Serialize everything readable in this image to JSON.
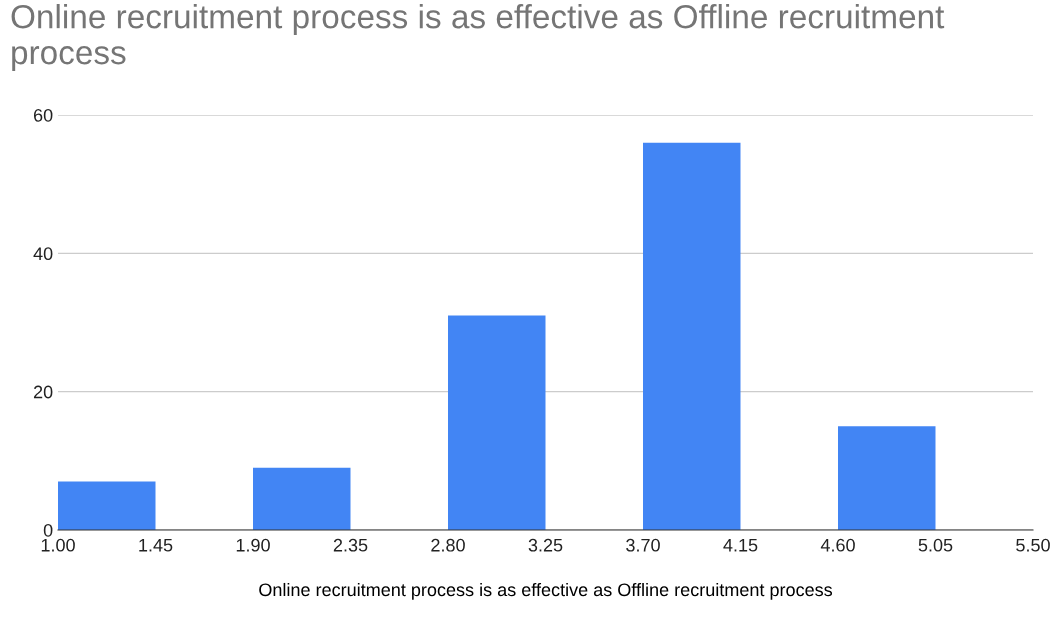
{
  "chart_data": {
    "type": "histogram",
    "title": "Online recruitment process is as effective as Offline recruitment process",
    "xlabel": "Online recruitment process is as effective as Offline recruitment process",
    "bins": [
      1.0,
      1.45,
      1.9,
      2.35,
      2.8,
      3.25,
      3.7,
      4.15,
      4.6,
      5.05,
      5.5
    ],
    "values": [
      7,
      0,
      9,
      0,
      31,
      0,
      56,
      0,
      15,
      0
    ],
    "color": "#4285f4",
    "xlim": [
      1.0,
      5.5
    ],
    "xticks": [
      {
        "value": 1.0,
        "label": "1.00"
      },
      {
        "value": 1.45,
        "label": "1.45"
      },
      {
        "value": 1.9,
        "label": "1.90"
      },
      {
        "value": 2.35,
        "label": "2.35"
      },
      {
        "value": 2.8,
        "label": "2.80"
      },
      {
        "value": 3.25,
        "label": "3.25"
      },
      {
        "value": 3.7,
        "label": "3.70"
      },
      {
        "value": 4.15,
        "label": "4.15"
      },
      {
        "value": 4.6,
        "label": "4.60"
      },
      {
        "value": 5.05,
        "label": "5.05"
      },
      {
        "value": 5.5,
        "label": "5.50"
      }
    ],
    "ylim": [
      0,
      60
    ],
    "yticks": [
      0,
      20,
      40,
      60
    ],
    "grid": "y"
  }
}
